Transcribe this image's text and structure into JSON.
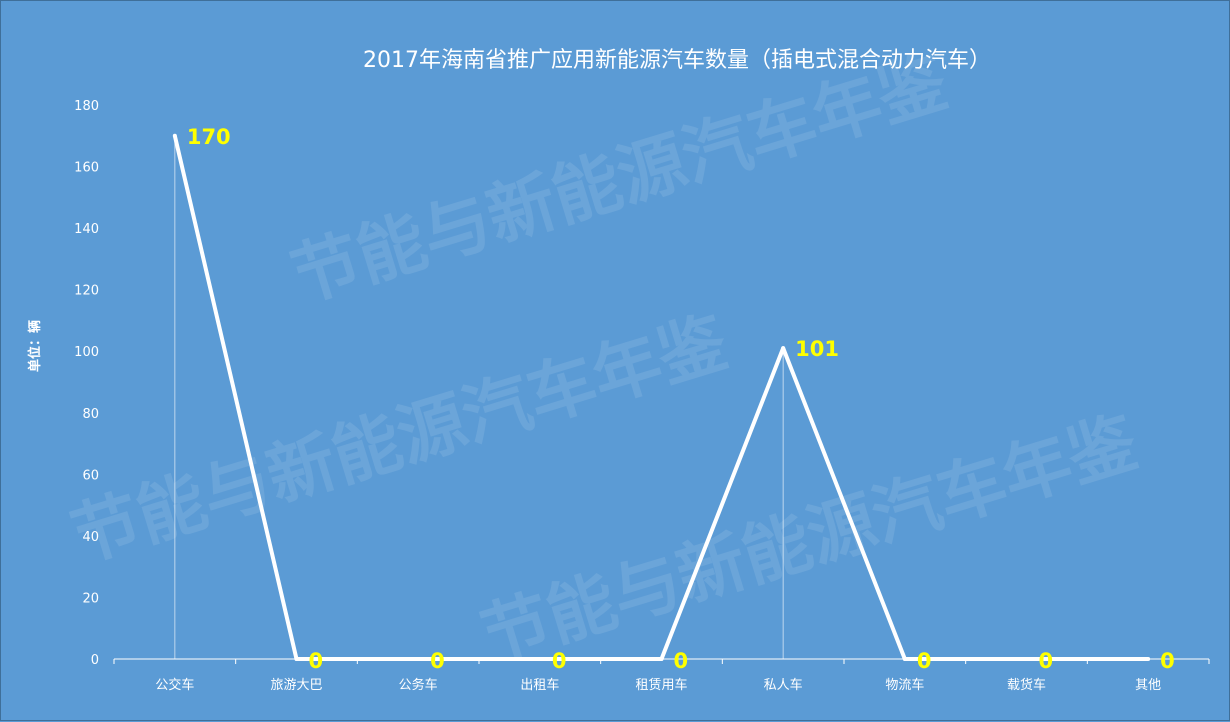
{
  "chart_data": {
    "type": "line",
    "title": "2017年海南省推广应用新能源汽车数量（插电式混合动力汽车）",
    "ylabel": "单位：辆",
    "xlabel": "",
    "categories": [
      "公交车",
      "旅游大巴",
      "公务车",
      "出租车",
      "租赁用车",
      "私人车",
      "物流车",
      "载货车",
      "其他"
    ],
    "values": [
      170,
      0,
      0,
      0,
      0,
      101,
      0,
      0,
      0
    ],
    "ylim": [
      0,
      180
    ],
    "yticks": [
      0,
      20,
      40,
      60,
      80,
      100,
      120,
      140,
      160,
      180
    ],
    "grid": false,
    "legend": "none",
    "watermark": "节能与新能源汽车年鉴",
    "colors": {
      "background": "#5b9bd5",
      "line": "#ffffff",
      "data_label": "#ffff00",
      "text": "#ffffff"
    }
  }
}
